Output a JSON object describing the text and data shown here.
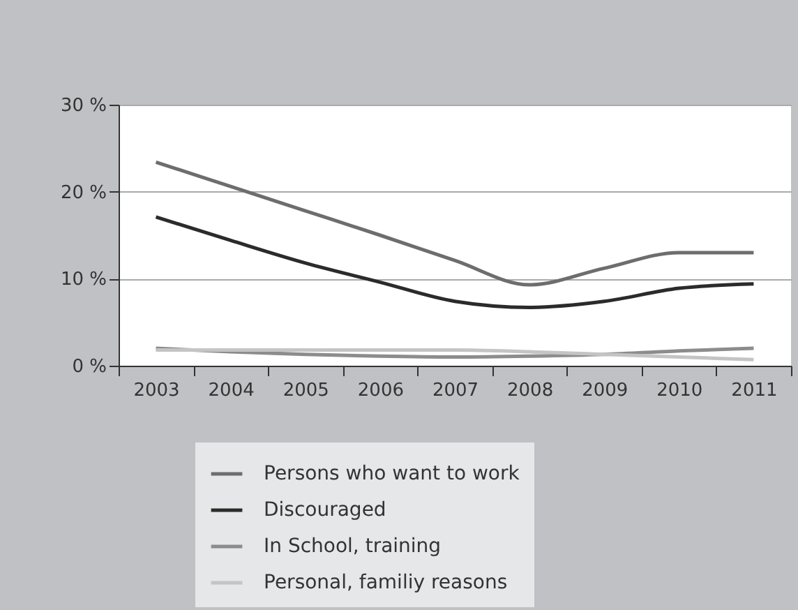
{
  "chart_data": {
    "type": "line",
    "categories": [
      "2003",
      "2004",
      "2005",
      "2006",
      "2007",
      "2008",
      "2009",
      "2010",
      "2011"
    ],
    "series": [
      {
        "name": "Persons who want to work",
        "color": "#6d6d6d",
        "values": [
          23.4,
          20.6,
          17.8,
          15.0,
          12.1,
          9.3,
          11.2,
          13.0,
          13.0
        ]
      },
      {
        "name": "Discouraged",
        "color": "#2b2b2b",
        "values": [
          17.1,
          14.4,
          11.8,
          9.6,
          7.4,
          6.7,
          7.4,
          8.9,
          9.4
        ]
      },
      {
        "name": "In School, training",
        "color": "#8c8c8c",
        "values": [
          2.0,
          1.6,
          1.3,
          1.1,
          1.0,
          1.1,
          1.3,
          1.7,
          2.0
        ]
      },
      {
        "name": "Personal, familiy reasons",
        "color": "#c4c4c4",
        "values": [
          1.8,
          1.8,
          1.8,
          1.8,
          1.8,
          1.6,
          1.3,
          1.0,
          0.7
        ]
      }
    ],
    "ylim": [
      0,
      30
    ],
    "yticks": [
      {
        "value": 0,
        "label": "0 %"
      },
      {
        "value": 10,
        "label": "10 %"
      },
      {
        "value": 20,
        "label": "20 %"
      },
      {
        "value": 30,
        "label": "30 %"
      }
    ],
    "grid": "y",
    "legend": "bottom",
    "marker": "none",
    "line_style": "solid"
  }
}
